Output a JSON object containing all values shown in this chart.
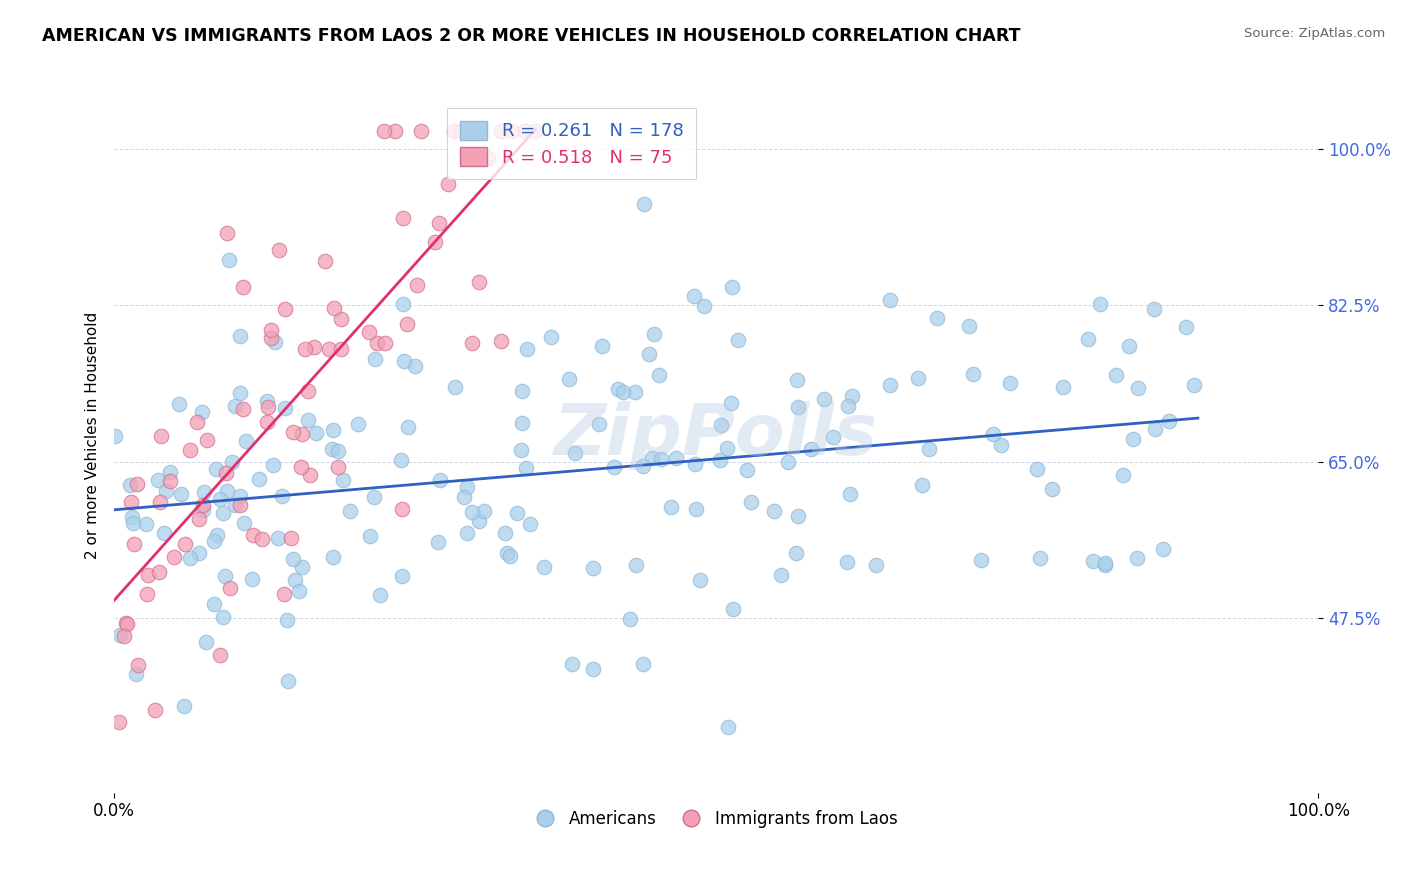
{
  "title": "AMERICAN VS IMMIGRANTS FROM LAOS 2 OR MORE VEHICLES IN HOUSEHOLD CORRELATION CHART",
  "source": "Source: ZipAtlas.com",
  "ylabel": "2 or more Vehicles in Household",
  "watermark": "ZipPolls",
  "blue_R": 0.261,
  "blue_N": 178,
  "pink_R": 0.518,
  "pink_N": 75,
  "blue_color": "#aacfea",
  "pink_color": "#f4a0b5",
  "blue_line_color": "#3060c0",
  "pink_line_color": "#e03070",
  "legend_label_blue": "Americans",
  "legend_label_pink": "Immigrants from Laos",
  "xmin": 0.0,
  "xmax": 100.0,
  "ymin": 28.0,
  "ymax": 108.0,
  "yticks": [
    47.5,
    65.0,
    82.5,
    100.0
  ],
  "ytick_labels": [
    "47.5%",
    "65.0%",
    "82.5%",
    "100.0%"
  ],
  "blue_intercept": 60.0,
  "blue_slope": 0.12,
  "pink_intercept": 50.0,
  "pink_slope": 1.45
}
